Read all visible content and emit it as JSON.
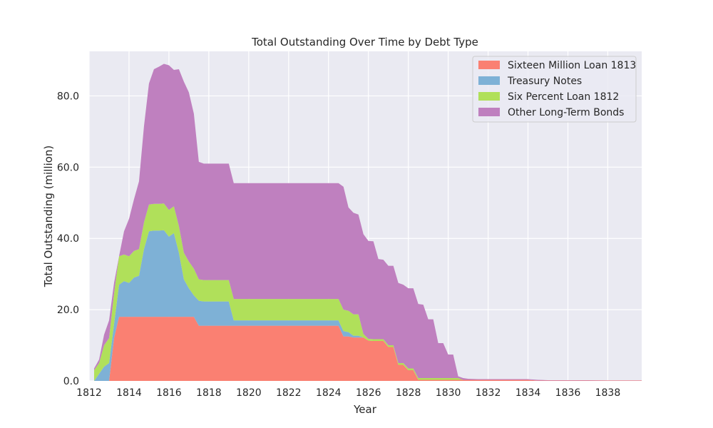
{
  "chart_data": {
    "type": "area",
    "stacked": true,
    "title": "Total Outstanding Over Time by Debt Type",
    "xlabel": "Year",
    "ylabel": "Total Outstanding (million)",
    "xlim": [
      1812,
      1839.7
    ],
    "ylim": [
      0,
      92.5
    ],
    "xticks": [
      1812,
      1814,
      1816,
      1818,
      1820,
      1822,
      1824,
      1826,
      1828,
      1830,
      1832,
      1834,
      1836,
      1838
    ],
    "yticks": [
      0.0,
      20.0,
      40.0,
      60.0,
      80.0
    ],
    "ytick_labels": [
      "0.0",
      "20.0",
      "40.0",
      "60.0",
      "80.0"
    ],
    "grid": true,
    "legend_position": "top-right",
    "x": [
      1812.25,
      1812.5,
      1812.75,
      1813.0,
      1813.25,
      1813.5,
      1813.75,
      1814.0,
      1814.25,
      1814.5,
      1814.75,
      1815.0,
      1815.25,
      1815.5,
      1815.75,
      1816.0,
      1816.25,
      1816.5,
      1816.75,
      1817.0,
      1817.25,
      1817.5,
      1817.75,
      1818.0,
      1818.5,
      1819.0,
      1819.25,
      1819.5,
      1820.0,
      1821.0,
      1822.0,
      1823.0,
      1824.0,
      1824.5,
      1824.75,
      1825.0,
      1825.25,
      1825.5,
      1825.75,
      1826.0,
      1826.25,
      1826.5,
      1826.75,
      1827.0,
      1827.25,
      1827.5,
      1827.75,
      1828.0,
      1828.25,
      1828.5,
      1828.75,
      1829.0,
      1829.25,
      1829.5,
      1829.75,
      1830.0,
      1830.25,
      1830.5,
      1830.75,
      1831.0,
      1831.5,
      1832.0,
      1833.0,
      1834.0,
      1834.5,
      1835.0,
      1836.0,
      1837.0,
      1838.0,
      1839.7
    ],
    "series": [
      {
        "name": "Sixteen Million Loan 1813",
        "color": "#fa8072",
        "values": [
          0,
          0,
          0,
          0,
          12,
          18,
          18,
          18,
          18,
          18,
          18,
          18,
          18,
          18,
          18,
          18,
          18,
          18,
          18,
          18,
          18,
          15.5,
          15.5,
          15.5,
          15.5,
          15.5,
          15.5,
          15.5,
          15.5,
          15.5,
          15.5,
          15.5,
          15.5,
          15.5,
          12.5,
          12.5,
          12.2,
          12.2,
          12.2,
          11.3,
          11.2,
          11.2,
          11.2,
          9.5,
          9.5,
          4.5,
          4.5,
          3.0,
          3.0,
          0.3,
          0.3,
          0.3,
          0.3,
          0.3,
          0.3,
          0.3,
          0.3,
          0.3,
          0.3,
          0.3,
          0.3,
          0.3,
          0.3,
          0.3,
          0.1,
          0.1,
          0.1,
          0.1,
          0.1,
          0.1
        ]
      },
      {
        "name": "Treasury Notes",
        "color": "#7eb1d6",
        "values": [
          0,
          2.0,
          4.0,
          5.0,
          4.0,
          9.0,
          10.0,
          9.5,
          11.0,
          11.5,
          19.0,
          24.0,
          24.2,
          24.2,
          24.3,
          22.5,
          23.5,
          18.0,
          10.5,
          8.0,
          6.0,
          7.0,
          6.8,
          6.8,
          6.8,
          6.8,
          1.5,
          1.5,
          1.5,
          1.5,
          1.5,
          1.5,
          1.5,
          1.5,
          1.5,
          1.2,
          0.5,
          0.5,
          0,
          0,
          0,
          0,
          0,
          0,
          0,
          0,
          0,
          0,
          0,
          0,
          0,
          0,
          0,
          0,
          0,
          0,
          0,
          0,
          0,
          0,
          0,
          0,
          0,
          0,
          0,
          0,
          0,
          0,
          0,
          0
        ]
      },
      {
        "name": "Six Percent Loan 1812",
        "color": "#b0e05a",
        "values": [
          3.0,
          3.0,
          6.0,
          7.0,
          8.5,
          8.0,
          7.5,
          7.5,
          7.5,
          7.5,
          7.5,
          7.5,
          7.5,
          7.5,
          7.5,
          7.5,
          7.5,
          7.5,
          7.5,
          7.5,
          7.5,
          6.0,
          6.0,
          6.0,
          6.0,
          6.0,
          6.0,
          6.0,
          6.0,
          6.0,
          6.0,
          6.0,
          6.0,
          6.0,
          6.0,
          6.0,
          6.0,
          6.0,
          1.0,
          0.5,
          0.5,
          0.5,
          0.5,
          0.5,
          0.5,
          0.5,
          0.5,
          0.5,
          0.5,
          0.5,
          0.5,
          0.5,
          0.5,
          0.5,
          0.5,
          0.5,
          0.5,
          0.5,
          0,
          0,
          0,
          0,
          0,
          0,
          0,
          0,
          0,
          0,
          0,
          0
        ]
      },
      {
        "name": "Other Long-Term Bonds",
        "color": "#bf80bf",
        "values": [
          0.5,
          1.0,
          3.0,
          5.0,
          3.0,
          0,
          6.5,
          10.5,
          14.5,
          19.0,
          27.0,
          34.0,
          37.8,
          38.5,
          39.2,
          40.6,
          38.3,
          44.0,
          48.0,
          47.5,
          43.5,
          33.0,
          32.7,
          32.7,
          32.7,
          32.7,
          32.5,
          32.5,
          32.5,
          32.5,
          32.5,
          32.5,
          32.5,
          32.5,
          34.5,
          29.0,
          28.5,
          28.0,
          28.0,
          27.5,
          27.5,
          22.5,
          22.3,
          22.3,
          22.3,
          22.5,
          22.0,
          22.5,
          22.5,
          20.8,
          20.6,
          16.5,
          16.5,
          9.8,
          9.8,
          6.6,
          6.6,
          0.5,
          0.5,
          0.3,
          0.2,
          0.2,
          0.2,
          0.2,
          0.2,
          0.1,
          0.1,
          0.1,
          0.05,
          0.05
        ]
      }
    ]
  }
}
